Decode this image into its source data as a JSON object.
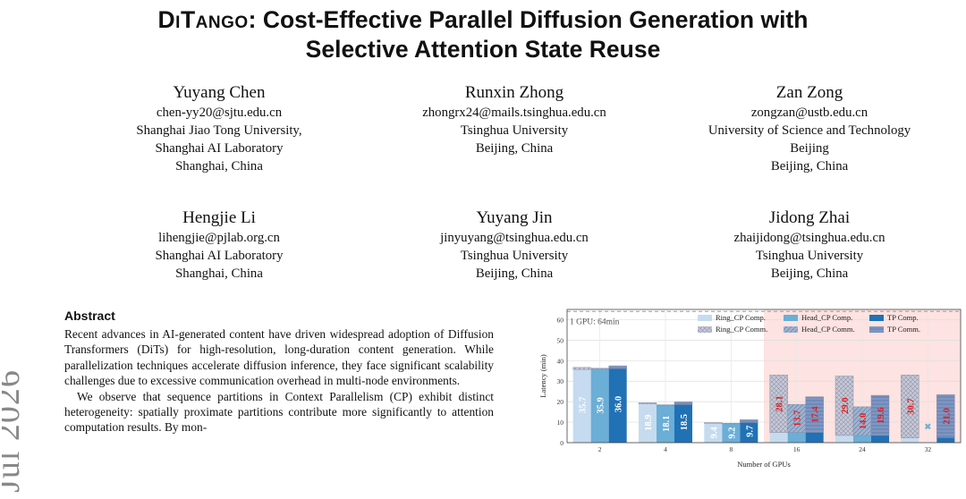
{
  "sidebar_date": "Jul 2026",
  "title": {
    "lead": "DiTango",
    "rest_line1": ": Cost-Effective Parallel Diffusion Generation with",
    "line2": "Selective Attention State Reuse"
  },
  "authors": [
    {
      "name": "Yuyang Chen",
      "email": "chen-yy20@sjtu.edu.cn",
      "affiliation": [
        "Shanghai Jiao Tong University,",
        "Shanghai AI Laboratory",
        "Shanghai, China"
      ]
    },
    {
      "name": "Runxin Zhong",
      "email": "zhongrx24@mails.tsinghua.edu.cn",
      "affiliation": [
        "Tsinghua University",
        "Beijing, China"
      ]
    },
    {
      "name": "Zan Zong",
      "email": "zongzan@ustb.edu.cn",
      "affiliation": [
        "University of Science and Technology",
        "Beijing",
        "Beijing, China"
      ]
    },
    {
      "name": "Hengjie Li",
      "email": "lihengjie@pjlab.org.cn",
      "affiliation": [
        "Shanghai AI Laboratory",
        "Shanghai, China"
      ]
    },
    {
      "name": "Yuyang Jin",
      "email": "jinyuyang@tsinghua.edu.cn",
      "affiliation": [
        "Tsinghua University",
        "Beijing, China"
      ]
    },
    {
      "name": "Jidong Zhai",
      "email": "zhaijidong@tsinghua.edu.cn",
      "affiliation": [
        "Tsinghua University",
        "Beijing, China"
      ]
    }
  ],
  "abstract": {
    "heading": "Abstract",
    "p1": "Recent advances in AI-generated content have driven widespread adoption of Diffusion Transformers (DiTs) for high-resolution, long-duration content generation. While parallelization techniques accelerate diffusion inference, they face significant scalability challenges due to excessive communication overhead in multi-node environments.",
    "p2": "We observe that sequence partitions in Context Parallelism (CP) exhibit distinct heterogeneity: spatially proximate partitions contribute more significantly to attention computation results. By mon-"
  },
  "chart_data": {
    "type": "bar",
    "xlabel": "Number of GPUs",
    "ylabel": "Latency (min)",
    "ylim": [
      0,
      65
    ],
    "yticks": [
      0,
      10,
      20,
      30,
      40,
      50,
      60
    ],
    "categories": [
      "2",
      "4",
      "8",
      "16",
      "24",
      "32"
    ],
    "reference_line": {
      "value": 64,
      "label": "1 GPU: 64min"
    },
    "highlight_from_category": "16",
    "series": [
      {
        "name": "Ring_CP",
        "color": "#c6dbef",
        "comp": [
          35.7,
          18.9,
          9.4,
          4.9,
          3.5,
          2.3
        ],
        "comm": [
          1.0,
          0.6,
          0.4,
          28.1,
          29.0,
          30.7
        ],
        "labels": [
          "35.7",
          "18.9",
          "9.4",
          "28.1",
          "29.0",
          "30.7"
        ]
      },
      {
        "name": "Head_CP",
        "color": "#6baed6",
        "comp": [
          35.9,
          18.1,
          9.2,
          5.0,
          3.5,
          null
        ],
        "comm": [
          0.4,
          0.4,
          0.3,
          13.7,
          14.0,
          null
        ],
        "labels": [
          "35.9",
          "18.1",
          "9.2",
          "13.7",
          "14.0",
          ""
        ]
      },
      {
        "name": "TP",
        "color": "#2171b5",
        "comp": [
          36.0,
          18.5,
          9.7,
          5.0,
          3.5,
          2.4
        ],
        "comm": [
          1.5,
          1.4,
          1.5,
          17.4,
          19.6,
          21.0
        ],
        "labels": [
          "36.0",
          "18.5",
          "9.7",
          "17.4",
          "19.6",
          "21.0"
        ]
      }
    ],
    "missing_marker": {
      "category": "32",
      "series": "Head_CP",
      "symbol": "✖"
    },
    "legend": {
      "placement": "top-right",
      "comp_suffix": " Comp.",
      "comm_suffix": " Comm."
    },
    "label_colors": {
      "normal": "#ffffff",
      "highlight": "#e31a1c"
    }
  }
}
